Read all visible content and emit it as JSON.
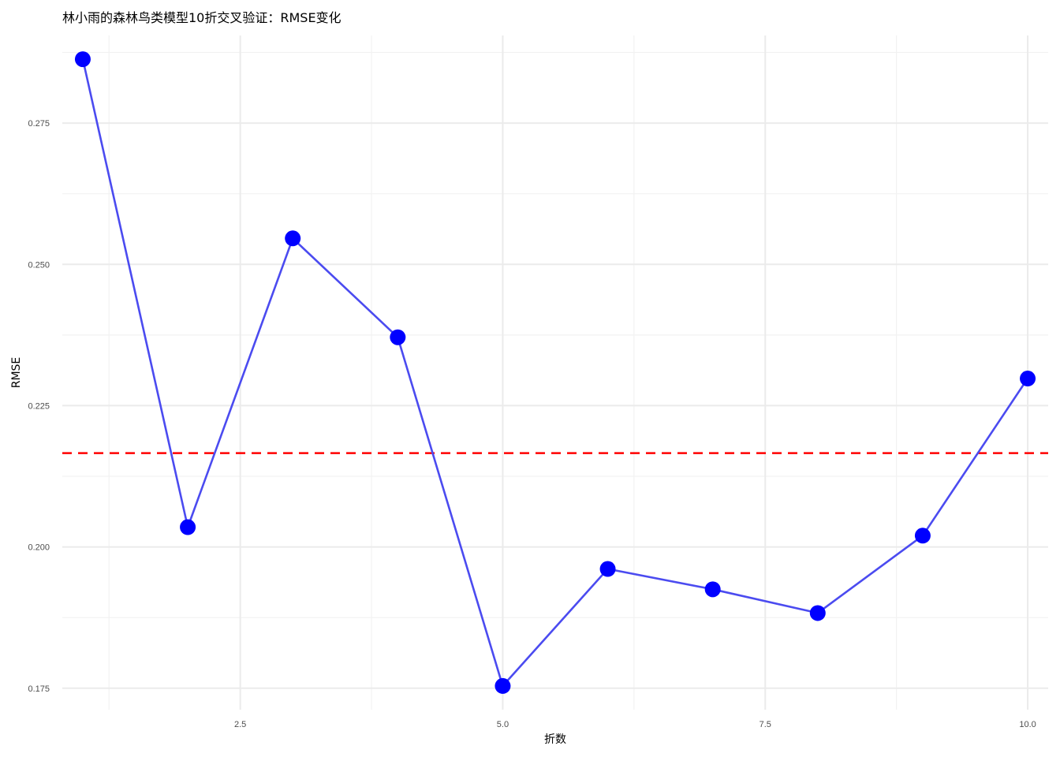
{
  "chart_data": {
    "type": "line",
    "title": "林小雨的森林鸟类模型10折交叉验证：RMSE变化",
    "xlabel": "折数",
    "ylabel": "RMSE",
    "x": [
      1,
      2,
      3,
      4,
      5,
      6,
      7,
      8,
      9,
      10
    ],
    "series": [
      {
        "values": [
          0.2863,
          0.2035,
          0.2546,
          0.2371,
          0.1754,
          0.1961,
          0.1925,
          0.1883,
          0.202,
          0.2298
        ]
      }
    ],
    "reference_line": {
      "y": 0.2166,
      "style": "dashed",
      "color": "#ff0000"
    },
    "xlim": [
      0.805,
      10.195
    ],
    "ylim": [
      0.1712,
      0.2905
    ],
    "x_ticks": [
      2.5,
      5.0,
      7.5,
      10.0
    ],
    "x_tick_labels": [
      "2.5",
      "5.0",
      "7.5",
      "10.0"
    ],
    "y_ticks": [
      0.175,
      0.2,
      0.225,
      0.25,
      0.275
    ],
    "y_tick_labels": [
      "0.175",
      "0.200",
      "0.225",
      "0.250",
      "0.275"
    ],
    "line_color": "#4b4bf0",
    "point_color": "#0000ff",
    "grid": true,
    "legend": "none"
  }
}
